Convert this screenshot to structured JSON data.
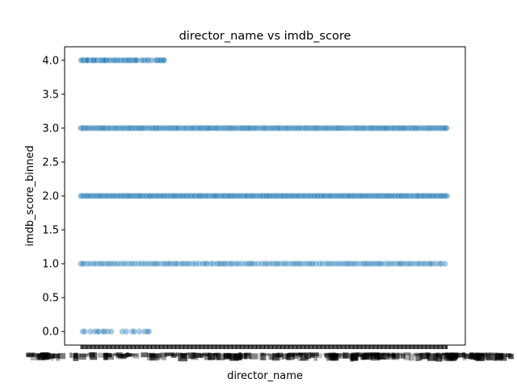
{
  "chart_data": {
    "type": "scatter",
    "title": "director_name vs imdb_score",
    "xlabel": "director_name",
    "ylabel": "imdb_score_binned",
    "ylim": [
      -0.2,
      4.2
    ],
    "yticks": [
      0.0,
      0.5,
      1.0,
      1.5,
      2.0,
      2.5,
      3.0,
      3.5,
      4.0
    ],
    "ytick_labels": [
      "0.0",
      "0.5",
      "1.0",
      "1.5",
      "2.0",
      "2.5",
      "3.0",
      "3.5",
      "4.0"
    ],
    "x_categorical": true,
    "x_category_count_approx": 2000,
    "x_tick_labels_legible": false,
    "grid": false,
    "legend": "none",
    "marker_color": "#1f77b4",
    "marker_alpha": 0.4,
    "series": [
      {
        "y": 4.0,
        "x_category_index": [
          2,
          4,
          8,
          12,
          16,
          20,
          26,
          31,
          34,
          36,
          42,
          56,
          62,
          66,
          70,
          73,
          85,
          88,
          101,
          106,
          109,
          113,
          116,
          119,
          124,
          129,
          134,
          138,
          150,
          158,
          172,
          179,
          187,
          196,
          207,
          216,
          229,
          234,
          244,
          251,
          259,
          262,
          272,
          280,
          289,
          297,
          299,
          309,
          330,
          339,
          348,
          361,
          368,
          385,
          406,
          413,
          418,
          423,
          431,
          434,
          441,
          452,
          454
        ]
      },
      {
        "y": 0.0,
        "x_category_index": [
          10,
          22,
          52,
          76,
          90,
          99,
          123,
          127,
          146,
          166,
          227,
          248,
          281,
          292,
          320,
          348,
          362,
          371
        ]
      }
    ],
    "note_dense_rows": [
      1.0,
      2.0,
      3.0
    ]
  }
}
